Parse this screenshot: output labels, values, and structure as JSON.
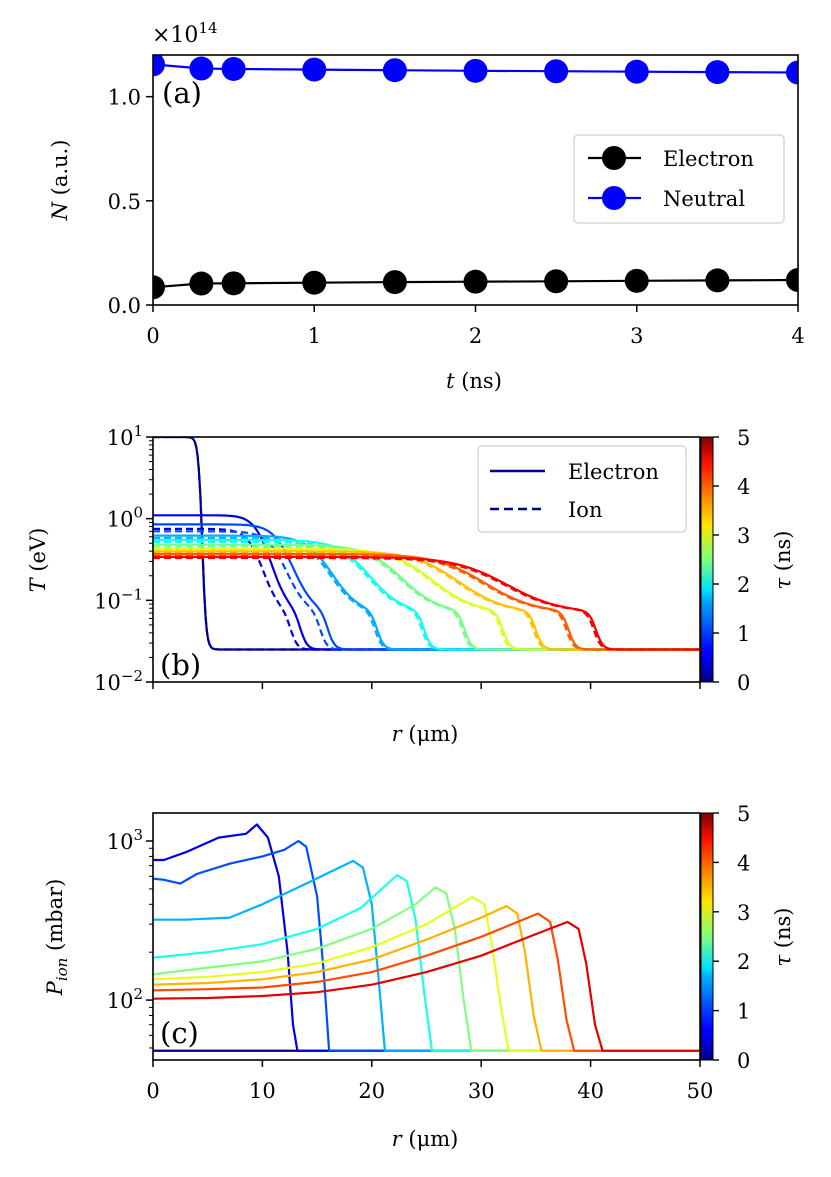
{
  "chart_data": [
    {
      "id": "a",
      "type": "line",
      "panel_label": "(a)",
      "xlabel": "t",
      "xlabel_unit": "(ns)",
      "ylabel": "N",
      "ylabel_unit": "(a.u.)",
      "offset_text": "×10",
      "offset_exponent": "14",
      "xlim": [
        0,
        4
      ],
      "ylim": [
        0,
        1.2
      ],
      "xticks": [
        0,
        1,
        2,
        3,
        4
      ],
      "xtick_labels": [
        "0",
        "1",
        "2",
        "3",
        "4"
      ],
      "yticks": [
        0.0,
        0.5,
        1.0
      ],
      "ytick_labels": [
        "0.0",
        "0.5",
        "1.0"
      ],
      "legend_position": "center-right",
      "series": [
        {
          "name": "Electron",
          "color": "#000000",
          "x": [
            0,
            0.3,
            0.5,
            1,
            1.5,
            2,
            2.5,
            3,
            3.5,
            4
          ],
          "values": [
            0.085,
            0.103,
            0.104,
            0.107,
            0.11,
            0.112,
            0.114,
            0.116,
            0.118,
            0.12
          ]
        },
        {
          "name": "Neutral",
          "color": "#0000ff",
          "x": [
            0,
            0.3,
            0.5,
            1,
            1.5,
            2,
            2.5,
            3,
            3.5,
            4
          ],
          "values": [
            1.155,
            1.135,
            1.133,
            1.13,
            1.127,
            1.124,
            1.122,
            1.12,
            1.118,
            1.116
          ]
        }
      ]
    },
    {
      "id": "b",
      "type": "line",
      "panel_label": "(b)",
      "scale_y": "log",
      "xlabel": "r",
      "xlabel_unit": "(μm)",
      "ylabel": "T",
      "ylabel_unit": "(eV)",
      "xlim": [
        0,
        50
      ],
      "ylim_exp": [
        -2,
        1
      ],
      "xticks": [
        0,
        10,
        20,
        30,
        40,
        50
      ],
      "ytick_exponents": [
        "1",
        "0",
        "−1",
        "−2"
      ],
      "ytick_base": "10",
      "legend_position": "top-right",
      "legend": [
        {
          "label": "Electron",
          "style": "solid",
          "color": "#00008b"
        },
        {
          "label": "Ion",
          "style": "dashed",
          "color": "#00008b"
        }
      ],
      "colorbar": {
        "label": "τ",
        "unit": "(ns)",
        "range": [
          0,
          5
        ],
        "ticks": [
          "0",
          "1",
          "2",
          "3",
          "4",
          "5"
        ]
      },
      "background_T_eV": 0.025,
      "series": [
        {
          "tau": 0.0,
          "electron": {
            "plateau": 10,
            "front_um": 4.5
          },
          "ion": {
            "plateau": 10,
            "front_um": 4.5
          }
        },
        {
          "tau": 0.5,
          "electron": {
            "plateau": 1.1,
            "shoulder": 0.7,
            "front_um": 13.5
          },
          "ion": {
            "plateau": 0.75,
            "front_um": 12.6
          }
        },
        {
          "tau": 1.0,
          "electron": {
            "plateau": 0.85,
            "shoulder": 0.6,
            "front_um": 16.0
          },
          "ion": {
            "plateau": 0.7,
            "front_um": 15.3
          }
        },
        {
          "tau": 1.5,
          "electron": {
            "plateau": 0.62,
            "front_um": 20.5
          },
          "ion": {
            "plateau": 0.58,
            "front_um": 20.3
          }
        },
        {
          "tau": 2.0,
          "electron": {
            "plateau": 0.55,
            "front_um": 24.8
          },
          "ion": {
            "plateau": 0.52,
            "front_um": 24.6
          }
        },
        {
          "tau": 2.5,
          "electron": {
            "plateau": 0.48,
            "front_um": 28.5
          },
          "ion": {
            "plateau": 0.46,
            "front_um": 28.3
          }
        },
        {
          "tau": 3.0,
          "electron": {
            "plateau": 0.43,
            "front_um": 32.0
          },
          "ion": {
            "plateau": 0.42,
            "front_um": 31.8
          }
        },
        {
          "tau": 3.5,
          "electron": {
            "plateau": 0.4,
            "front_um": 35.0
          },
          "ion": {
            "plateau": 0.39,
            "front_um": 34.8
          }
        },
        {
          "tau": 4.0,
          "electron": {
            "plateau": 0.37,
            "front_um": 38.0
          },
          "ion": {
            "plateau": 0.36,
            "front_um": 37.8
          }
        },
        {
          "tau": 4.5,
          "electron": {
            "plateau": 0.34,
            "front_um": 40.5
          },
          "ion": {
            "plateau": 0.33,
            "front_um": 40.3
          }
        }
      ]
    },
    {
      "id": "c",
      "type": "line",
      "panel_label": "(c)",
      "scale_y": "log",
      "xlabel": "r",
      "xlabel_unit": "(μm)",
      "ylabel": "P",
      "ylabel_sub": "ion",
      "ylabel_unit": "(mbar)",
      "xlim": [
        0,
        50
      ],
      "ylim": [
        42,
        1500
      ],
      "xticks": [
        0,
        10,
        20,
        30,
        40,
        50
      ],
      "xtick_labels": [
        "0",
        "10",
        "20",
        "30",
        "40",
        "50"
      ],
      "ytick_exponents": [
        "3",
        "2"
      ],
      "ytick_values": [
        1000,
        100
      ],
      "ytick_base": "10",
      "colorbar": {
        "label": "τ",
        "unit": "(ns)",
        "range": [
          0,
          5
        ],
        "ticks": [
          "0",
          "1",
          "2",
          "3",
          "4",
          "5"
        ]
      },
      "background_mbar": 48,
      "series": [
        {
          "tau": 0.5,
          "points": [
            [
              0,
              760
            ],
            [
              1,
              760
            ],
            [
              3,
              850
            ],
            [
              6,
              1050
            ],
            [
              8.5,
              1110
            ],
            [
              9.5,
              1270
            ],
            [
              10.5,
              1050
            ],
            [
              11.5,
              600
            ],
            [
              12.3,
              200
            ],
            [
              12.8,
              70
            ],
            [
              13.2,
              48
            ]
          ]
        },
        {
          "tau": 1.0,
          "points": [
            [
              0,
              580
            ],
            [
              1,
              570
            ],
            [
              2.5,
              540
            ],
            [
              4,
              620
            ],
            [
              7,
              720
            ],
            [
              10,
              800
            ],
            [
              12,
              880
            ],
            [
              13.3,
              1000
            ],
            [
              14,
              920
            ],
            [
              15,
              450
            ],
            [
              15.6,
              150
            ],
            [
              16.1,
              48
            ]
          ]
        },
        {
          "tau": 1.5,
          "points": [
            [
              0,
              320
            ],
            [
              3,
              320
            ],
            [
              7,
              330
            ],
            [
              10,
              400
            ],
            [
              14,
              540
            ],
            [
              17,
              680
            ],
            [
              18.3,
              750
            ],
            [
              19.2,
              680
            ],
            [
              20,
              400
            ],
            [
              20.6,
              140
            ],
            [
              21.2,
              48
            ]
          ]
        },
        {
          "tau": 2.0,
          "points": [
            [
              0,
              185
            ],
            [
              5,
              200
            ],
            [
              10,
              225
            ],
            [
              15,
              280
            ],
            [
              19,
              380
            ],
            [
              22.3,
              610
            ],
            [
              23.2,
              560
            ],
            [
              24,
              320
            ],
            [
              24.8,
              110
            ],
            [
              25.5,
              48
            ]
          ]
        },
        {
          "tau": 2.5,
          "points": [
            [
              0,
              145
            ],
            [
              5,
              160
            ],
            [
              10,
              175
            ],
            [
              15,
              210
            ],
            [
              20,
              280
            ],
            [
              24,
              400
            ],
            [
              25.8,
              510
            ],
            [
              26.8,
              470
            ],
            [
              27.6,
              280
            ],
            [
              28.4,
              100
            ],
            [
              29.1,
              48
            ]
          ]
        },
        {
          "tau": 3.0,
          "points": [
            [
              0,
              135
            ],
            [
              5,
              140
            ],
            [
              10,
              150
            ],
            [
              15,
              170
            ],
            [
              20,
              215
            ],
            [
              25,
              300
            ],
            [
              29.2,
              445
            ],
            [
              30.3,
              400
            ],
            [
              31,
              220
            ],
            [
              31.8,
              90
            ],
            [
              32.5,
              48
            ]
          ]
        },
        {
          "tau": 3.5,
          "points": [
            [
              0,
              125
            ],
            [
              5,
              128
            ],
            [
              10,
              135
            ],
            [
              15,
              150
            ],
            [
              20,
              180
            ],
            [
              25,
              240
            ],
            [
              30,
              330
            ],
            [
              32.3,
              390
            ],
            [
              33.3,
              350
            ],
            [
              34,
              200
            ],
            [
              34.8,
              80
            ],
            [
              35.5,
              48
            ]
          ]
        },
        {
          "tau": 4.0,
          "points": [
            [
              0,
              115
            ],
            [
              5,
              117
            ],
            [
              10,
              120
            ],
            [
              15,
              130
            ],
            [
              20,
              150
            ],
            [
              25,
              190
            ],
            [
              30,
              250
            ],
            [
              35.2,
              350
            ],
            [
              36.3,
              310
            ],
            [
              37,
              180
            ],
            [
              37.8,
              75
            ],
            [
              38.5,
              48
            ]
          ]
        },
        {
          "tau": 4.5,
          "points": [
            [
              0,
              102
            ],
            [
              5,
              103
            ],
            [
              10,
              106
            ],
            [
              15,
              112
            ],
            [
              20,
              125
            ],
            [
              25,
              150
            ],
            [
              30,
              190
            ],
            [
              35,
              260
            ],
            [
              37.9,
              310
            ],
            [
              38.9,
              280
            ],
            [
              39.6,
              170
            ],
            [
              40.4,
              70
            ],
            [
              41.1,
              48
            ]
          ]
        }
      ]
    }
  ]
}
